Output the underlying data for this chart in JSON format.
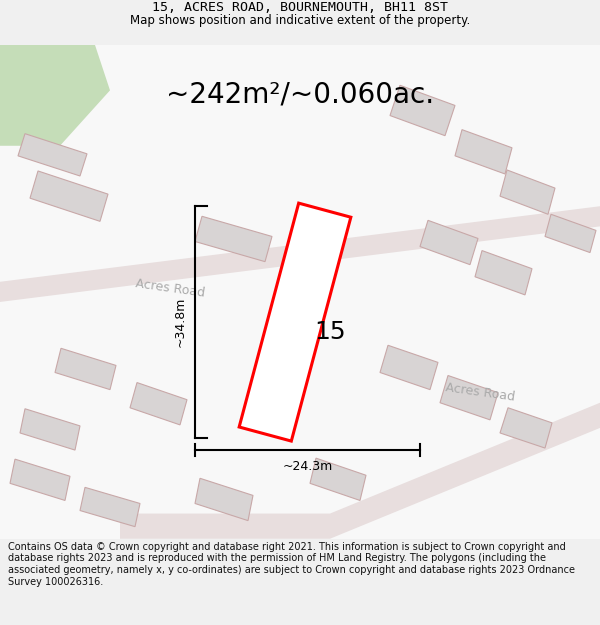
{
  "title_line1": "15, ACRES ROAD, BOURNEMOUTH, BH11 8ST",
  "title_line2": "Map shows position and indicative extent of the property.",
  "area_text": "~242m²/~0.060ac.",
  "label_15": "15",
  "dim_vertical": "~34.8m",
  "dim_horizontal": "~24.3m",
  "road_label1": "Acres Road",
  "road_label2": "Acres Road",
  "footer_text": "Contains OS data © Crown copyright and database right 2021. This information is subject to Crown copyright and database rights 2023 and is reproduced with the permission of HM Land Registry. The polygons (including the associated geometry, namely x, y co-ordinates) are subject to Crown copyright and database rights 2023 Ordnance Survey 100026316.",
  "bg_color": "#f0f0f0",
  "map_bg": "#f8f8f8",
  "road_color": "#e8dede",
  "building_fill": "#d8d4d4",
  "building_edge": "#c8a8a8",
  "highlight_fill": "#ffffff",
  "highlight_edge": "#ff0000",
  "green_color": "#c5ddb8",
  "dim_line_color": "#000000",
  "title_fontsize": 9.5,
  "subtitle_fontsize": 8.5,
  "area_fontsize": 20,
  "label_fontsize": 18,
  "road_fontsize": 9,
  "footer_fontsize": 7.0
}
